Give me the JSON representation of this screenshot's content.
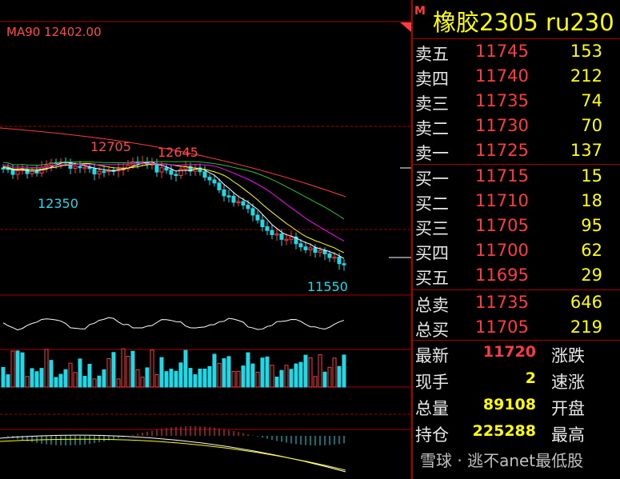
{
  "chart": {
    "ma_label": "MA90 12402.00",
    "annotations": [
      "12705",
      "12645",
      "12350",
      "11550"
    ]
  },
  "quote": {
    "badge": "M",
    "title": "橡胶2305  ru230",
    "asks": [
      {
        "label": "卖五",
        "price": "11745",
        "qty": "153"
      },
      {
        "label": "卖四",
        "price": "11740",
        "qty": "212"
      },
      {
        "label": "卖三",
        "price": "11735",
        "qty": "74"
      },
      {
        "label": "卖二",
        "price": "11730",
        "qty": "70"
      },
      {
        "label": "卖一",
        "price": "11725",
        "qty": "137"
      }
    ],
    "bids": [
      {
        "label": "买一",
        "price": "11715",
        "qty": "15"
      },
      {
        "label": "买二",
        "price": "11710",
        "qty": "18"
      },
      {
        "label": "买三",
        "price": "11705",
        "qty": "95"
      },
      {
        "label": "买四",
        "price": "11700",
        "qty": "62"
      },
      {
        "label": "买五",
        "price": "11695",
        "qty": "29"
      }
    ],
    "totals": [
      {
        "label": "总卖",
        "price": "11735",
        "qty": "646"
      },
      {
        "label": "总买",
        "price": "11705",
        "qty": "219"
      }
    ],
    "stats": [
      {
        "label": "最新",
        "value": "11720",
        "color": "#ff3b3b",
        "label2": "涨跌"
      },
      {
        "label": "现手",
        "value": "2",
        "color": "#ffff00",
        "label2": "速涨"
      },
      {
        "label": "总量",
        "value": "89108",
        "color": "#ffff00",
        "label2": "开盘"
      },
      {
        "label": "持仓",
        "value": "225288",
        "color": "#ffff00",
        "label2": "最高"
      }
    ],
    "watermark": "雪球 · 逃不anet最低股"
  },
  "colors": {
    "up": "#ff3b3b",
    "down": "#22d8e6",
    "accent": "#ffff00"
  }
}
